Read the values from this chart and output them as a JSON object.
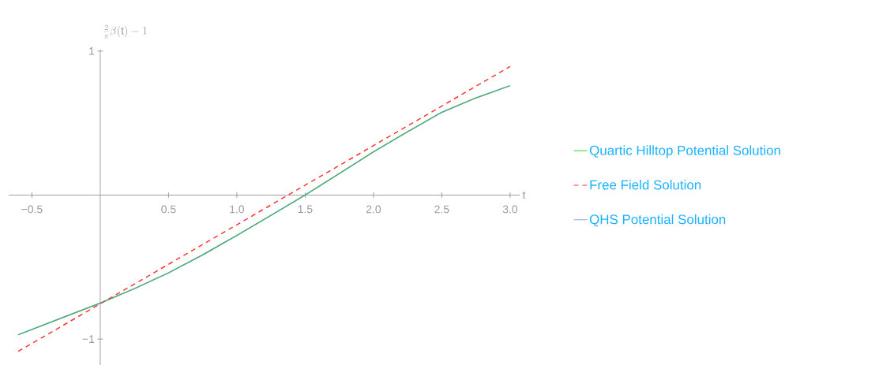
{
  "chart_data": {
    "type": "line",
    "xlabel": "t",
    "ylabel": "\\frac{2}{\\pi}\\beta(\\mathrm{t})-1",
    "xlim": [
      -0.67,
      3.07
    ],
    "ylim": [
      -1.18,
      1.01
    ],
    "xticks": [
      {
        "value": -0.5,
        "label": "−0.5"
      },
      0.5,
      {
        "value": 1,
        "label": "1.0"
      },
      1.5,
      {
        "value": 2,
        "label": "2.0"
      },
      2.5,
      {
        "value": 3,
        "label": "3.0"
      }
    ],
    "yticks": [
      {
        "value": -1,
        "label": "−1"
      },
      1
    ],
    "legend": "right",
    "grid": false,
    "series": [
      {
        "name": "Quartic Hilltop Potential Solution",
        "color": "#44e044",
        "line_style": "solid",
        "x": [
          -0.6,
          -0.3,
          0,
          0.25,
          0.5,
          0.75,
          1.0,
          1.25,
          1.5,
          1.75,
          2.0,
          2.25,
          2.5,
          2.75,
          3.0
        ],
        "values": [
          -0.97,
          -0.86,
          -0.75,
          -0.65,
          -0.54,
          -0.415,
          -0.28,
          -0.14,
          0.0,
          0.15,
          0.3,
          0.44,
          0.575,
          0.675,
          0.76
        ]
      },
      {
        "name": "Free Field Solution",
        "color": "#ff3333",
        "line_style": "dashed",
        "x": [
          -0.6,
          3.0
        ],
        "values": [
          -1.085,
          0.893
        ]
      },
      {
        "name": "QHS Potential Solution",
        "color": "#5e81b5",
        "line_style": "solid",
        "x": [
          -0.6,
          -0.3,
          0,
          0.25,
          0.5,
          0.75,
          1.0,
          1.25,
          1.5,
          1.75,
          2.0,
          2.25,
          2.5,
          2.75,
          3.0
        ],
        "values": [
          -0.97,
          -0.86,
          -0.75,
          -0.65,
          -0.54,
          -0.415,
          -0.28,
          -0.14,
          0.0,
          0.15,
          0.3,
          0.44,
          0.575,
          0.675,
          0.76
        ]
      }
    ]
  }
}
